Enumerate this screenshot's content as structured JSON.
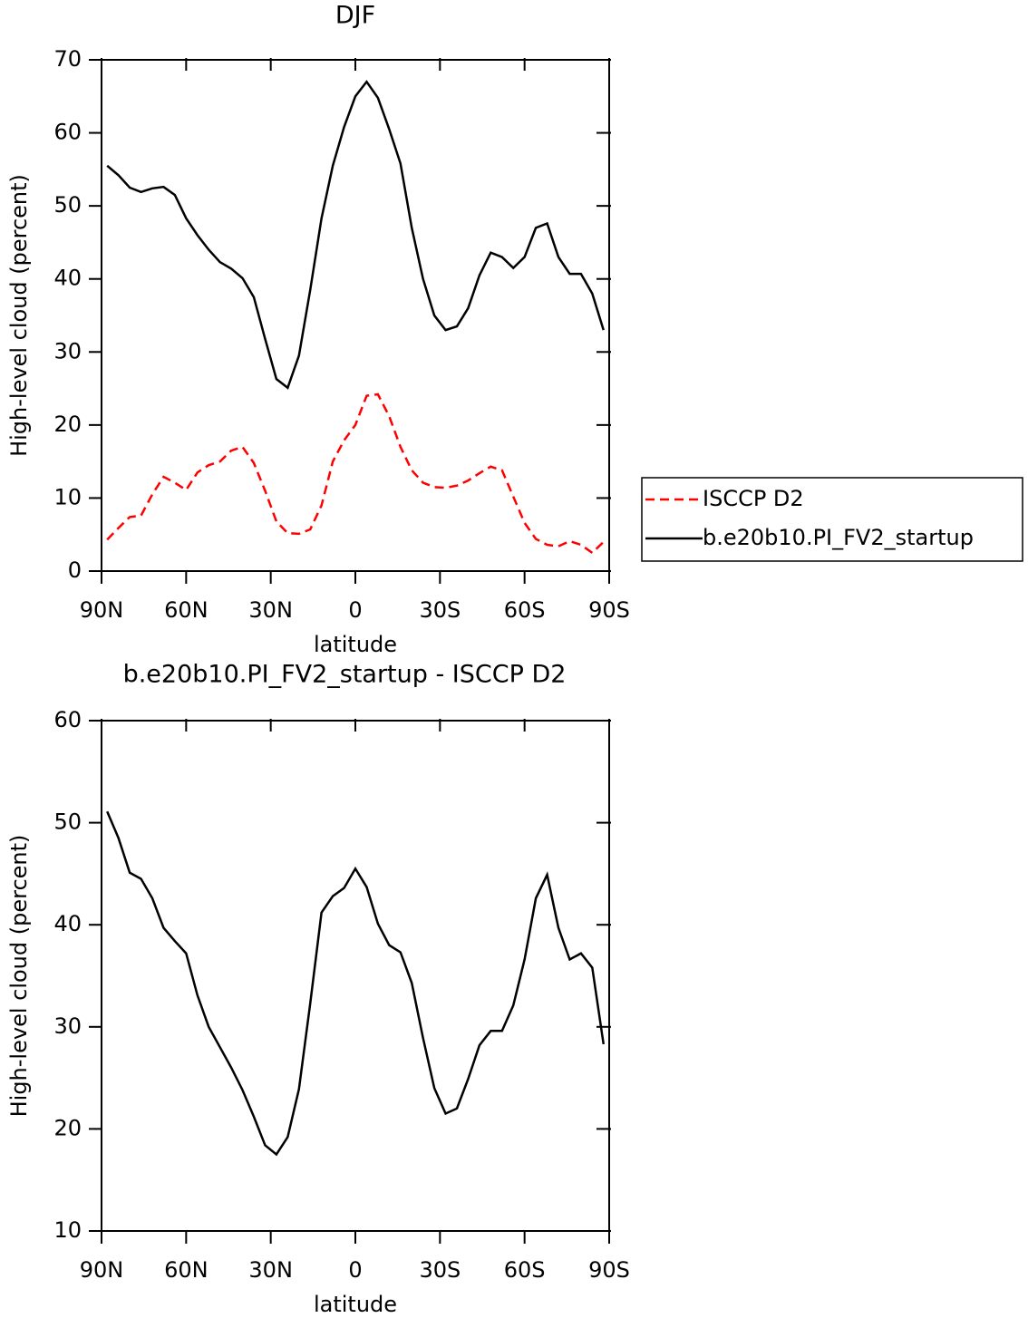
{
  "chart_data": [
    {
      "type": "line",
      "title": "DJF",
      "xlabel": "latitude",
      "ylabel": "High-level cloud (percent)",
      "x": [
        88,
        84,
        80,
        76,
        72,
        68,
        64,
        60,
        56,
        52,
        48,
        44,
        40,
        36,
        32,
        28,
        24,
        20,
        16,
        12,
        8,
        4,
        0,
        -4,
        -8,
        -12,
        -16,
        -20,
        -24,
        -28,
        -32,
        -36,
        -40,
        -44,
        -48,
        -52,
        -56,
        -60,
        -64,
        -68,
        -72,
        -76,
        -80,
        -84,
        -88
      ],
      "series": [
        {
          "name": "ISCCP D2",
          "color": "#ff0000",
          "dash": "dashed",
          "values": [
            4.3,
            5.9,
            7.4,
            7.6,
            10.5,
            12.9,
            12.1,
            11.1,
            13.5,
            14.5,
            15,
            16.5,
            17,
            14.8,
            11,
            6.8,
            5.2,
            5.1,
            5.7,
            9,
            15,
            17.9,
            20,
            24,
            24.2,
            21.2,
            17,
            13.8,
            12.1,
            11.5,
            11.4,
            11.7,
            12.4,
            13.4,
            14.3,
            13.8,
            10.2,
            6.6,
            4.4,
            3.6,
            3.4,
            4.1,
            3.6,
            2.5,
            4
          ]
        },
        {
          "name": "b.e20b10.PI_FV2_startup",
          "color": "#000000",
          "dash": "solid",
          "values": [
            55.5,
            54.2,
            52.5,
            51.9,
            52.4,
            52.6,
            51.5,
            48.3,
            46,
            44,
            42.3,
            41.4,
            40.1,
            37.5,
            31.8,
            26.3,
            25.1,
            29.5,
            38.5,
            48.3,
            55.5,
            60.8,
            65,
            67,
            64.8,
            60.5,
            55.8,
            47,
            40,
            35,
            33,
            33.5,
            36,
            40.5,
            43.6,
            43,
            41.5,
            43,
            47,
            47.6,
            43,
            40.7,
            40.7,
            38,
            33
          ]
        }
      ],
      "xlim": [
        90,
        -90
      ],
      "xticks": [
        {
          "value": 90,
          "label": "90N"
        },
        {
          "value": 60,
          "label": "60N"
        },
        {
          "value": 30,
          "label": "30N"
        },
        0,
        {
          "value": -30,
          "label": "30S"
        },
        {
          "value": -60,
          "label": "60S"
        },
        {
          "value": -90,
          "label": "90S"
        }
      ],
      "ylim": [
        0,
        70
      ],
      "yticks": [
        0,
        10,
        20,
        30,
        40,
        50,
        60,
        70
      ],
      "legend": "right"
    },
    {
      "type": "line",
      "title": "b.e20b10.PI_FV2_startup - ISCCP D2",
      "xlabel": "latitude",
      "ylabel": "High-level cloud (percent)",
      "x": [
        88,
        84,
        80,
        76,
        72,
        68,
        64,
        60,
        56,
        52,
        48,
        44,
        40,
        36,
        32,
        28,
        24,
        20,
        16,
        12,
        8,
        4,
        0,
        -4,
        -8,
        -12,
        -16,
        -20,
        -24,
        -28,
        -32,
        -36,
        -40,
        -44,
        -48,
        -52,
        -56,
        -60,
        -64,
        -68,
        -72,
        -76,
        -80,
        -84,
        -88
      ],
      "color": "#000000",
      "values": [
        51.1,
        48.5,
        45.1,
        44.5,
        42.6,
        39.7,
        38.4,
        37.2,
        33.1,
        30,
        28,
        26,
        23.8,
        21.2,
        18.4,
        17.5,
        19.2,
        23.9,
        32.3,
        41.2,
        42.8,
        43.6,
        45.5,
        43.7,
        40.1,
        38,
        37.3,
        34.3,
        28.9,
        24,
        21.5,
        22,
        24.9,
        28.2,
        29.6,
        29.6,
        32.1,
        36.6,
        42.6,
        44.9,
        39.7,
        36.6,
        37.2,
        35.8,
        28.3
      ],
      "xlim": [
        90,
        -90
      ],
      "xticks": [
        {
          "value": 90,
          "label": "90N"
        },
        {
          "value": 60,
          "label": "60N"
        },
        {
          "value": 30,
          "label": "30N"
        },
        0,
        {
          "value": -30,
          "label": "30S"
        },
        {
          "value": -60,
          "label": "60S"
        },
        {
          "value": -90,
          "label": "90S"
        }
      ],
      "ylim": [
        10,
        60
      ],
      "yticks": [
        10,
        20,
        30,
        40,
        50,
        60
      ]
    }
  ]
}
